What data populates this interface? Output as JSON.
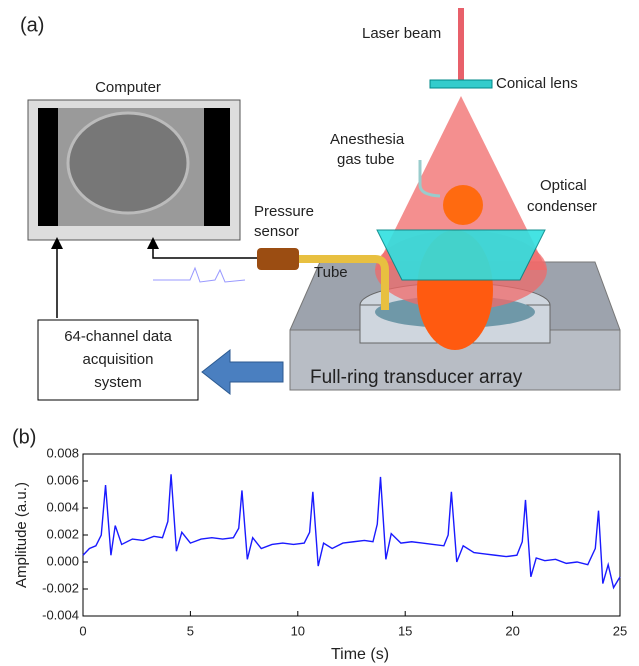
{
  "panel_a": {
    "label": "(a)",
    "computer": "Computer",
    "laser_beam": "Laser beam",
    "conical_lens": "Conical lens",
    "anesthesia_gas_tube": [
      "Anesthesia",
      "gas tube"
    ],
    "optical_condenser": [
      "Optical",
      "condenser"
    ],
    "pressure_sensor": [
      "Pressure",
      "sensor"
    ],
    "tube": "Tube",
    "daq": [
      "64-channel data",
      "acquisition",
      "system"
    ],
    "transducer": "Full-ring transducer array"
  },
  "panel_b_label": "(b)",
  "chart_data": {
    "type": "line",
    "x_label": "Time (s)",
    "y_label": "Amplitude (a.u.)",
    "xlim": [
      0,
      25
    ],
    "xticks": [
      0,
      5,
      10,
      15,
      20,
      25
    ],
    "ylim": [
      -0.004,
      0.008
    ],
    "yticks": [
      -0.004,
      -0.002,
      {
        "value": 0,
        "label": "0.000"
      },
      0.002,
      0.004,
      0.006,
      0.008
    ],
    "series": [
      {
        "color": "#1a1aff",
        "x": [
          0,
          0.3,
          0.6,
          0.85,
          1.05,
          1.3,
          1.5,
          1.8,
          2.3,
          2.8,
          3.3,
          3.7,
          3.95,
          4.1,
          4.35,
          4.6,
          5.0,
          5.5,
          6.0,
          6.5,
          7.0,
          7.25,
          7.4,
          7.65,
          7.9,
          8.3,
          8.8,
          9.3,
          9.8,
          10.3,
          10.55,
          10.7,
          10.95,
          11.2,
          11.6,
          12.1,
          12.6,
          13.1,
          13.5,
          13.7,
          13.85,
          14.1,
          14.35,
          14.8,
          15.3,
          15.8,
          16.3,
          16.8,
          17.0,
          17.15,
          17.4,
          17.7,
          18.2,
          18.7,
          19.2,
          19.7,
          20.2,
          20.45,
          20.6,
          20.85,
          21.1,
          21.5,
          22.0,
          22.5,
          23.0,
          23.5,
          23.85,
          24.0,
          24.2,
          24.45,
          24.7,
          25.0
        ],
        "values": [
          0.0005,
          0.001,
          0.0012,
          0.002,
          0.0057,
          0.0005,
          0.0027,
          0.0013,
          0.0017,
          0.0016,
          0.0019,
          0.0018,
          0.003,
          0.0065,
          0.0008,
          0.0022,
          0.0014,
          0.0017,
          0.0018,
          0.0017,
          0.0018,
          0.0025,
          0.0053,
          0.0002,
          0.0018,
          0.001,
          0.0013,
          0.0014,
          0.0013,
          0.0014,
          0.0022,
          0.0052,
          -0.0003,
          0.0014,
          0.001,
          0.0014,
          0.0015,
          0.0016,
          0.0015,
          0.0028,
          0.0063,
          0.0002,
          0.0021,
          0.0014,
          0.0015,
          0.0014,
          0.0013,
          0.0012,
          0.002,
          0.0052,
          0.0,
          0.0012,
          0.0007,
          0.0006,
          0.0005,
          0.0004,
          0.0005,
          0.0015,
          0.0046,
          -0.0011,
          0.0003,
          0.0001,
          0.0002,
          -0.0001,
          0.0,
          -0.0002,
          0.001,
          0.0038,
          -0.0016,
          -0.0002,
          -0.0019,
          -0.0011
        ]
      }
    ]
  }
}
